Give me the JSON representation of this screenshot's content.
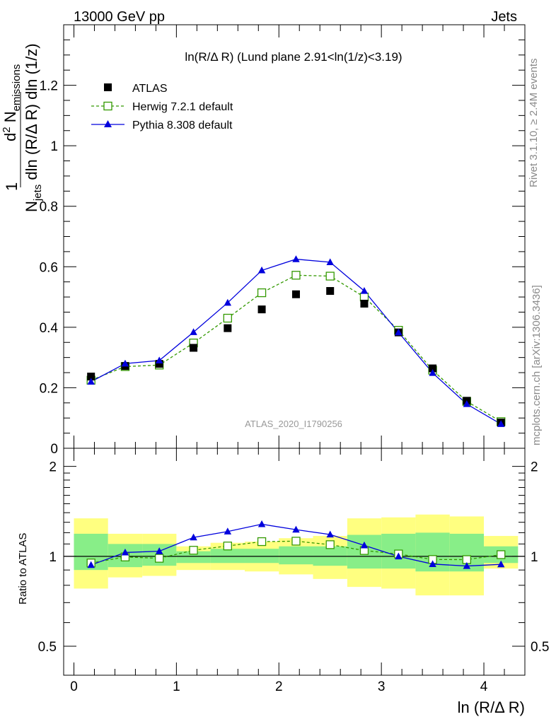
{
  "header": {
    "left": "13000 GeV pp",
    "right": "Jets"
  },
  "side_labels": {
    "rivet": "Rivet 3.1.10, ≥ 2.4M events",
    "mcplots": "mcplots.cern.ch [arXiv:1306.3436]"
  },
  "colors": {
    "atlas": "#000000",
    "herwig": "#339900",
    "pythia": "#0000dd",
    "band_outer": "#ffff80",
    "band_inner": "#88ee88",
    "watermark": "#999999"
  },
  "chart_data": [
    {
      "type": "scatter",
      "panel": "main",
      "title": "ln(R/Δ R) (Lund plane 2.91<ln(1/z)<3.19)",
      "watermark": "ATLAS_2020_I1790256",
      "ylabel": "1/N_jets d²N_emissions / dln(R/ΔR) dln(1/z)",
      "ylim": [
        0,
        1.4
      ],
      "xlim": [
        -0.1,
        4.4
      ],
      "yticks": [
        0,
        0.2,
        0.4,
        0.6,
        0.8,
        1,
        1.2
      ],
      "ytick_labels": [
        "0",
        "0.2",
        "0.4",
        "0.6",
        "0.8",
        "1",
        "1.2"
      ],
      "legend": {
        "placement": "top-left",
        "entries": [
          "ATLAS",
          "Herwig 7.2.1 default",
          "Pythia 8.308 default"
        ]
      },
      "x": [
        0.167,
        0.5,
        0.833,
        1.167,
        1.5,
        1.833,
        2.167,
        2.5,
        2.833,
        3.167,
        3.5,
        3.833,
        4.167
      ],
      "series": [
        {
          "name": "ATLAS",
          "style": "marker-square",
          "values": [
            0.237,
            0.272,
            0.279,
            0.332,
            0.397,
            0.459,
            0.509,
            0.52,
            0.478,
            0.383,
            0.264,
            0.157,
            0.085
          ]
        },
        {
          "name": "Herwig 7.2.1 default",
          "style": "dashed-open-square",
          "values": [
            0.225,
            0.27,
            0.275,
            0.348,
            0.43,
            0.514,
            0.572,
            0.569,
            0.5,
            0.39,
            0.258,
            0.155,
            0.088
          ]
        },
        {
          "name": "Pythia 8.308 default",
          "style": "solid-triangle",
          "values": [
            0.22,
            0.28,
            0.29,
            0.384,
            0.481,
            0.588,
            0.625,
            0.615,
            0.52,
            0.383,
            0.249,
            0.146,
            0.08
          ]
        }
      ]
    },
    {
      "type": "line",
      "panel": "ratio",
      "ylabel": "Ratio to ATLAS",
      "xlabel": "ln (R/Δ R)",
      "ylim": [
        0.4,
        2.3
      ],
      "yscale": "log",
      "xlim": [
        -0.1,
        4.4
      ],
      "xticks": [
        0,
        1,
        2,
        3,
        4
      ],
      "xtick_labels": [
        "0",
        "1",
        "2",
        "3",
        "4"
      ],
      "yticks": [
        0.5,
        1,
        2
      ],
      "ytick_labels": [
        "0.5",
        "1",
        "2"
      ],
      "bin_edges": [
        0,
        0.333,
        0.667,
        1.0,
        1.333,
        1.667,
        2.0,
        2.333,
        2.667,
        3.0,
        3.333,
        3.667,
        4.0,
        4.333
      ],
      "band_outer": {
        "low": [
          0.78,
          0.85,
          0.86,
          0.9,
          0.9,
          0.89,
          0.87,
          0.84,
          0.79,
          0.78,
          0.74,
          0.74,
          0.91
        ],
        "high": [
          1.34,
          1.19,
          1.19,
          1.08,
          1.11,
          1.12,
          1.15,
          1.17,
          1.34,
          1.35,
          1.38,
          1.36,
          1.17
        ]
      },
      "band_inner": {
        "low": [
          0.9,
          0.92,
          0.93,
          0.95,
          0.95,
          0.95,
          0.94,
          0.93,
          0.91,
          0.91,
          0.89,
          0.89,
          0.95
        ],
        "high": [
          1.19,
          1.1,
          1.1,
          1.04,
          1.06,
          1.06,
          1.08,
          1.08,
          1.18,
          1.19,
          1.2,
          1.19,
          1.08
        ]
      },
      "x": [
        0.167,
        0.5,
        0.833,
        1.167,
        1.5,
        1.833,
        2.167,
        2.5,
        2.833,
        3.167,
        3.5,
        3.833,
        4.167
      ],
      "series": [
        {
          "name": "Herwig 7.2.1 default",
          "style": "dashed-open-square",
          "values": [
            0.95,
            0.995,
            0.985,
            1.048,
            1.083,
            1.12,
            1.124,
            1.094,
            1.046,
            1.018,
            0.976,
            0.975,
            1.013
          ]
        },
        {
          "name": "Pythia 8.308 default",
          "style": "solid-triangle",
          "values": [
            0.935,
            1.03,
            1.04,
            1.157,
            1.211,
            1.281,
            1.228,
            1.183,
            1.088,
            0.999,
            0.942,
            0.928,
            0.94
          ]
        }
      ]
    }
  ]
}
